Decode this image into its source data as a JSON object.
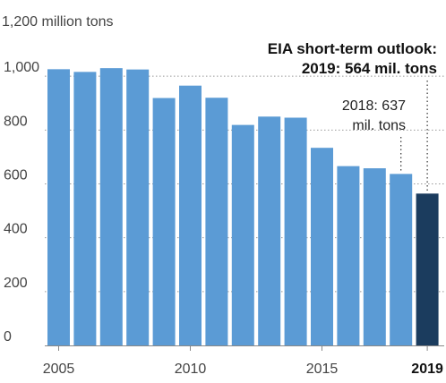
{
  "chart_data": {
    "type": "bar",
    "unit_label": "1,200 million tons",
    "categories": [
      "2005",
      "2006",
      "2007",
      "2008",
      "2009",
      "2010",
      "2011",
      "2012",
      "2013",
      "2014",
      "2015",
      "2016",
      "2017",
      "2018",
      "2019"
    ],
    "values": [
      1026,
      1016,
      1030,
      1025,
      919,
      965,
      920,
      819,
      850,
      846,
      734,
      666,
      658,
      637,
      564
    ],
    "ylim": [
      0,
      1200
    ],
    "yticks": [
      0,
      200,
      400,
      600,
      800,
      1000
    ],
    "ytick_labels": [
      "0",
      "200",
      "400",
      "600",
      "800",
      "1,000"
    ],
    "xtick_labels": [
      {
        "category": "2005",
        "label": "2005",
        "bold": false
      },
      {
        "category": "2010",
        "label": "2010",
        "bold": false
      },
      {
        "category": "2015",
        "label": "2015",
        "bold": false
      },
      {
        "category": "2019",
        "label": "2019",
        "bold": true
      }
    ],
    "grid": "horizontal-dotted",
    "colors": {
      "bar": "#5b9bd5",
      "highlight": "#1b3c5e",
      "grid": "#999999"
    },
    "highlight_category": "2019",
    "annotations": [
      {
        "category": "2019",
        "lines": [
          "EIA short-term outlook:",
          "2019: 564 mil. tons"
        ],
        "bold": true
      },
      {
        "category": "2018",
        "lines": [
          "2018: 637",
          "mil. tons"
        ],
        "bold": false
      }
    ]
  }
}
